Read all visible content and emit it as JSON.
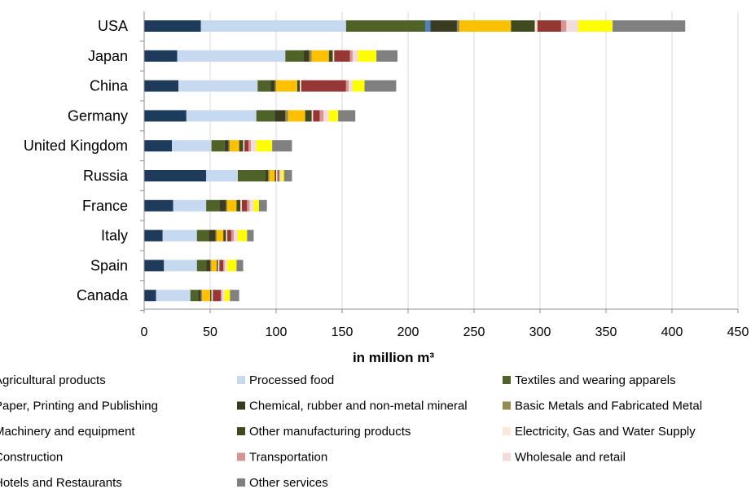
{
  "chart_data": {
    "type": "bar",
    "orientation": "horizontal",
    "stacked": true,
    "xlabel": "in million m³",
    "xlim": [
      0,
      450
    ],
    "x_ticks": [
      "0",
      "50",
      "100",
      "150",
      "200",
      "250",
      "300",
      "350",
      "400",
      "450"
    ],
    "grid": "vertical",
    "legend_position": "bottom",
    "categories": [
      "USA",
      "Japan",
      "China",
      "Germany",
      "United Kingdom",
      "Russia",
      "France",
      "Italy",
      "Spain",
      "Canada"
    ],
    "series": [
      {
        "name": "Agricultural products",
        "color": "#1f3b5c",
        "values": [
          43,
          25,
          26,
          32,
          21,
          47,
          22,
          14,
          15,
          9
        ]
      },
      {
        "name": "Processed food",
        "color": "#c6d9f0",
        "values": [
          110,
          82,
          60,
          53,
          30,
          24,
          25,
          26,
          25,
          26
        ]
      },
      {
        "name": "Textiles and wearing apparels",
        "color": "#4f6228",
        "values": [
          60,
          14,
          10,
          14,
          10,
          21,
          10,
          9,
          7,
          6
        ]
      },
      {
        "name": "Paper, Printing and Publishing",
        "color": "#4f81bd",
        "values": [
          4,
          0,
          0,
          0,
          0,
          0,
          0,
          0,
          0,
          0
        ]
      },
      {
        "name": "Chemical, rubber and non-metal mineral",
        "color": "#3b3b21",
        "values": [
          20,
          4,
          3,
          8,
          3,
          2,
          5,
          5,
          3,
          2
        ]
      },
      {
        "name": "Basic Metals and Fabricated Metal",
        "color": "#948a54",
        "values": [
          2,
          2,
          1,
          2,
          1,
          1,
          1,
          1,
          1,
          1
        ]
      },
      {
        "name": "Machinery and equipment",
        "color": "#ffc000",
        "values": [
          39,
          13,
          16,
          13,
          7,
          4,
          7,
          5,
          4,
          6
        ]
      },
      {
        "name": "Other manufacturing products",
        "color": "#3f4a1e",
        "values": [
          18,
          3,
          2,
          5,
          3,
          1,
          3,
          2,
          1,
          1
        ]
      },
      {
        "name": "Electricity, Gas and Water Supply",
        "color": "#fde9d9",
        "values": [
          2,
          1,
          1,
          1,
          1,
          1,
          1,
          1,
          1,
          1
        ]
      },
      {
        "name": "Construction",
        "color": "#953735",
        "values": [
          18,
          12,
          34,
          5,
          3,
          1,
          4,
          3,
          3,
          6
        ]
      },
      {
        "name": "Transportation",
        "color": "#d99594",
        "values": [
          4,
          2,
          2,
          3,
          2,
          1,
          2,
          2,
          1,
          1
        ]
      },
      {
        "name": "Wholesale and retail",
        "color": "#f2dcdb",
        "values": [
          9,
          4,
          3,
          4,
          4,
          1,
          3,
          3,
          2,
          2
        ]
      },
      {
        "name": "Hotels and Restaurants",
        "color": "#ffff00",
        "values": [
          26,
          14,
          9,
          7,
          12,
          2,
          4,
          7,
          7,
          4
        ]
      },
      {
        "name": "Other services",
        "color": "#808080",
        "values": [
          55,
          16,
          24,
          13,
          15,
          6,
          6,
          5,
          5,
          7
        ]
      }
    ]
  }
}
